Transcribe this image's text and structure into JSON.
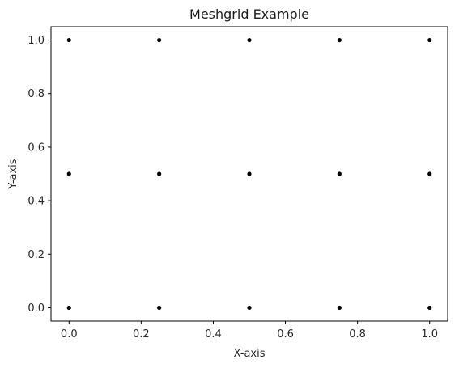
{
  "chart_data": {
    "type": "scatter",
    "title": "Meshgrid Example",
    "xlabel": "X-axis",
    "ylabel": "Y-axis",
    "xlim": [
      -0.05,
      1.05
    ],
    "ylim": [
      -0.05,
      1.05
    ],
    "xticks": [
      0.0,
      0.2,
      0.4,
      0.6,
      0.8,
      1.0
    ],
    "yticks": [
      0.0,
      0.2,
      0.4,
      0.6,
      0.8,
      1.0
    ],
    "xtick_labels": [
      "0.0",
      "0.2",
      "0.4",
      "0.6",
      "0.8",
      "1.0"
    ],
    "ytick_labels": [
      "0.0",
      "0.2",
      "0.4",
      "0.6",
      "0.8",
      "1.0"
    ],
    "grid": false,
    "marker_color": "#000000",
    "series": [
      {
        "x": [
          0.0,
          0.25,
          0.5,
          0.75,
          1.0,
          0.0,
          0.25,
          0.5,
          0.75,
          1.0,
          0.0,
          0.25,
          0.5,
          0.75,
          1.0
        ],
        "y": [
          0.0,
          0.0,
          0.0,
          0.0,
          0.0,
          0.5,
          0.5,
          0.5,
          0.5,
          0.5,
          1.0,
          1.0,
          1.0,
          1.0,
          1.0
        ]
      }
    ]
  }
}
